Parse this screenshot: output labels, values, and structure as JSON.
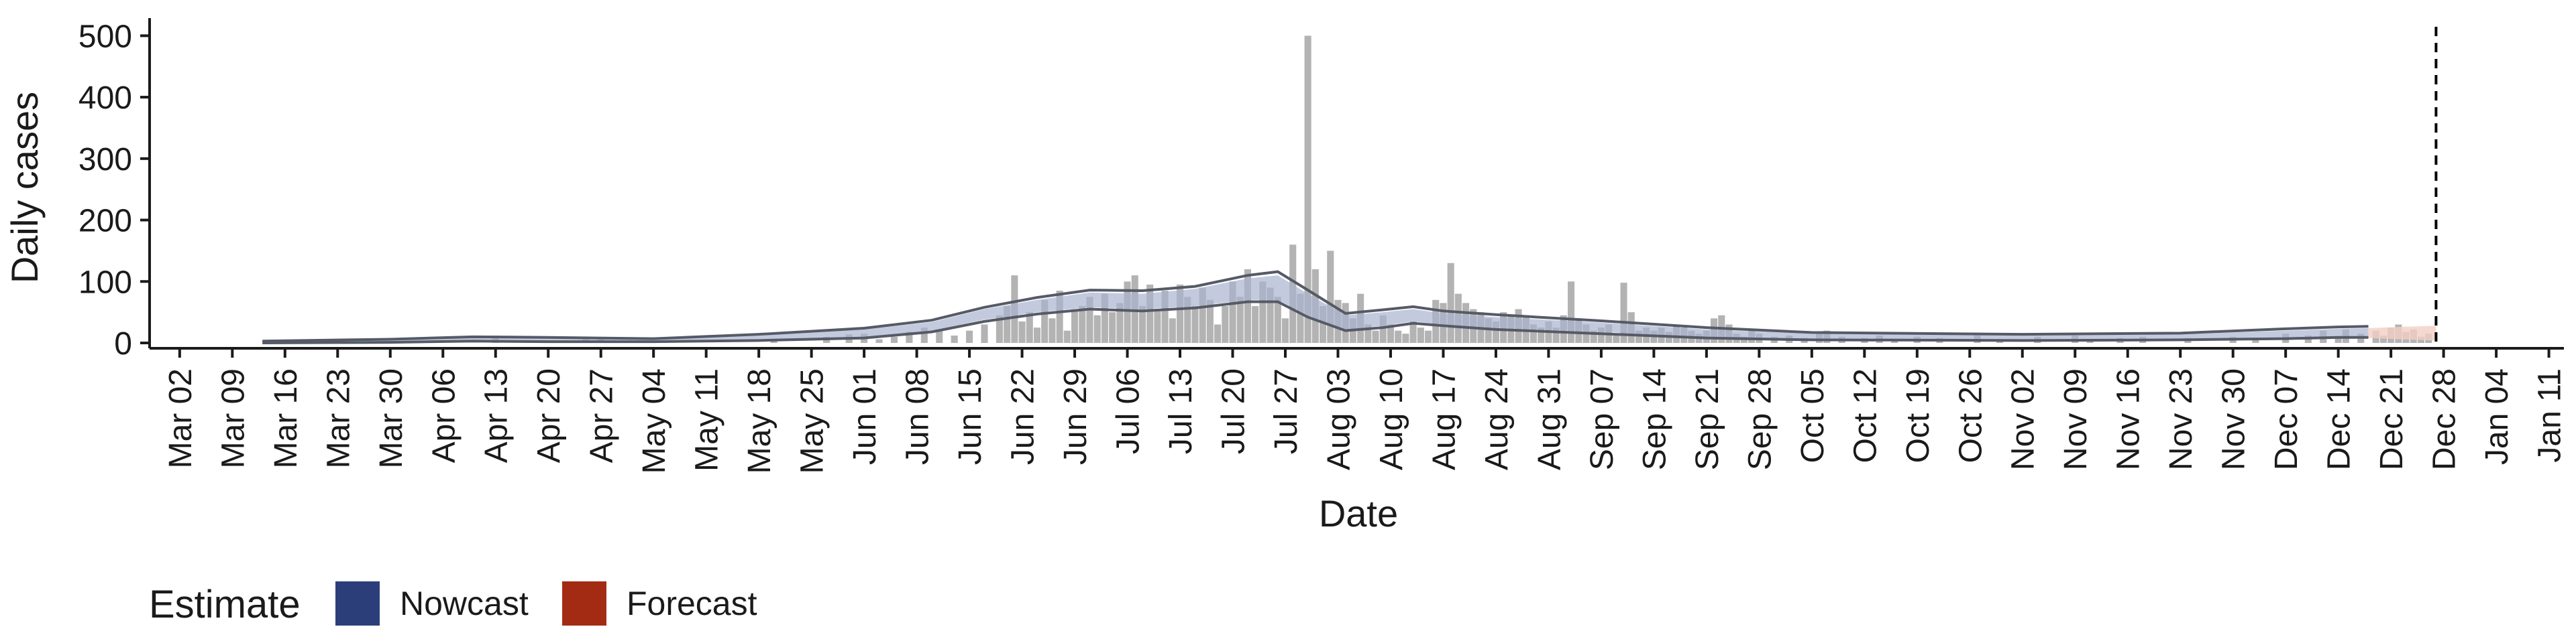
{
  "chart_data": {
    "type": "bar",
    "title": "",
    "xlabel": "Date",
    "ylabel": "Daily cases",
    "ylim": [
      0,
      520
    ],
    "yticks": [
      0,
      100,
      200,
      300,
      400,
      500
    ],
    "x_range": [
      "2020-02-27",
      "2021-01-13"
    ],
    "x_ticks": [
      "2020-03-02",
      "2020-03-09",
      "2020-03-16",
      "2020-03-23",
      "2020-03-30",
      "2020-04-06",
      "2020-04-13",
      "2020-04-20",
      "2020-04-27",
      "2020-05-04",
      "2020-05-11",
      "2020-05-18",
      "2020-05-25",
      "2020-06-01",
      "2020-06-08",
      "2020-06-15",
      "2020-06-22",
      "2020-06-29",
      "2020-07-06",
      "2020-07-13",
      "2020-07-20",
      "2020-07-27",
      "2020-08-03",
      "2020-08-10",
      "2020-08-17",
      "2020-08-24",
      "2020-08-31",
      "2020-09-07",
      "2020-09-14",
      "2020-09-21",
      "2020-09-28",
      "2020-10-05",
      "2020-10-12",
      "2020-10-19",
      "2020-10-26",
      "2020-11-02",
      "2020-11-09",
      "2020-11-16",
      "2020-11-23",
      "2020-11-30",
      "2020-12-07",
      "2020-12-14",
      "2020-12-21",
      "2020-12-28",
      "2021-01-04",
      "2021-01-11"
    ],
    "x_tick_labels": [
      "Mar 02",
      "Mar 09",
      "Mar 16",
      "Mar 23",
      "Mar 30",
      "Apr 06",
      "Apr 13",
      "Apr 20",
      "Apr 27",
      "May 04",
      "May 11",
      "May 18",
      "May 25",
      "Jun 01",
      "Jun 08",
      "Jun 15",
      "Jun 22",
      "Jun 29",
      "Jul 06",
      "Jul 13",
      "Jul 20",
      "Jul 27",
      "Aug 03",
      "Aug 10",
      "Aug 17",
      "Aug 24",
      "Aug 31",
      "Sep 07",
      "Sep 14",
      "Sep 21",
      "Sep 28",
      "Oct 05",
      "Oct 12",
      "Oct 19",
      "Oct 26",
      "Nov 02",
      "Nov 09",
      "Nov 16",
      "Nov 23",
      "Nov 30",
      "Dec 07",
      "Dec 14",
      "Dec 21",
      "Dec 28",
      "Jan 04",
      "Jan 11"
    ],
    "vline_date": "2020-12-27",
    "legend": {
      "title": "Estimate",
      "placement": "bottom-left",
      "items": [
        {
          "label": "Nowcast",
          "color": "#2c3e7a"
        },
        {
          "label": "Forecast",
          "color": "#a32b14"
        }
      ]
    },
    "bar_color": "#b3b3b3",
    "band_color": "#aab3d0",
    "line_color": "#555a66",
    "forecast_band_color": "#f2cfc6",
    "bars": [
      {
        "date": "2020-04-13",
        "value": 12
      },
      {
        "date": "2020-04-25",
        "value": 10
      },
      {
        "date": "2020-04-27",
        "value": 8
      },
      {
        "date": "2020-05-20",
        "value": 6
      },
      {
        "date": "2020-05-27",
        "value": 10
      },
      {
        "date": "2020-05-30",
        "value": 14
      },
      {
        "date": "2020-06-01",
        "value": 15
      },
      {
        "date": "2020-06-03",
        "value": 6
      },
      {
        "date": "2020-06-05",
        "value": 10
      },
      {
        "date": "2020-06-07",
        "value": 18
      },
      {
        "date": "2020-06-09",
        "value": 25
      },
      {
        "date": "2020-06-11",
        "value": 22
      },
      {
        "date": "2020-06-13",
        "value": 12
      },
      {
        "date": "2020-06-15",
        "value": 20
      },
      {
        "date": "2020-06-17",
        "value": 30
      },
      {
        "date": "2020-06-19",
        "value": 45
      },
      {
        "date": "2020-06-20",
        "value": 60
      },
      {
        "date": "2020-06-21",
        "value": 110
      },
      {
        "date": "2020-06-22",
        "value": 35
      },
      {
        "date": "2020-06-23",
        "value": 50
      },
      {
        "date": "2020-06-24",
        "value": 25
      },
      {
        "date": "2020-06-25",
        "value": 70
      },
      {
        "date": "2020-06-26",
        "value": 40
      },
      {
        "date": "2020-06-27",
        "value": 85
      },
      {
        "date": "2020-06-28",
        "value": 20
      },
      {
        "date": "2020-06-29",
        "value": 55
      },
      {
        "date": "2020-06-30",
        "value": 60
      },
      {
        "date": "2020-07-01",
        "value": 75
      },
      {
        "date": "2020-07-02",
        "value": 45
      },
      {
        "date": "2020-07-03",
        "value": 80
      },
      {
        "date": "2020-07-04",
        "value": 50
      },
      {
        "date": "2020-07-05",
        "value": 65
      },
      {
        "date": "2020-07-06",
        "value": 100
      },
      {
        "date": "2020-07-07",
        "value": 110
      },
      {
        "date": "2020-07-08",
        "value": 60
      },
      {
        "date": "2020-07-09",
        "value": 95
      },
      {
        "date": "2020-07-10",
        "value": 55
      },
      {
        "date": "2020-07-11",
        "value": 85
      },
      {
        "date": "2020-07-12",
        "value": 40
      },
      {
        "date": "2020-07-13",
        "value": 95
      },
      {
        "date": "2020-07-14",
        "value": 75
      },
      {
        "date": "2020-07-15",
        "value": 60
      },
      {
        "date": "2020-07-16",
        "value": 90
      },
      {
        "date": "2020-07-17",
        "value": 70
      },
      {
        "date": "2020-07-18",
        "value": 30
      },
      {
        "date": "2020-07-19",
        "value": 60
      },
      {
        "date": "2020-07-20",
        "value": 100
      },
      {
        "date": "2020-07-21",
        "value": 75
      },
      {
        "date": "2020-07-22",
        "value": 120
      },
      {
        "date": "2020-07-23",
        "value": 60
      },
      {
        "date": "2020-07-24",
        "value": 100
      },
      {
        "date": "2020-07-25",
        "value": 90
      },
      {
        "date": "2020-07-26",
        "value": 75
      },
      {
        "date": "2020-07-27",
        "value": 40
      },
      {
        "date": "2020-07-28",
        "value": 160
      },
      {
        "date": "2020-07-29",
        "value": 80
      },
      {
        "date": "2020-07-30",
        "value": 500
      },
      {
        "date": "2020-07-31",
        "value": 120
      },
      {
        "date": "2020-08-01",
        "value": 60
      },
      {
        "date": "2020-08-02",
        "value": 150
      },
      {
        "date": "2020-08-03",
        "value": 70
      },
      {
        "date": "2020-08-04",
        "value": 65
      },
      {
        "date": "2020-08-05",
        "value": 40
      },
      {
        "date": "2020-08-06",
        "value": 80
      },
      {
        "date": "2020-08-07",
        "value": 30
      },
      {
        "date": "2020-08-08",
        "value": 20
      },
      {
        "date": "2020-08-09",
        "value": 45
      },
      {
        "date": "2020-08-10",
        "value": 30
      },
      {
        "date": "2020-08-11",
        "value": 20
      },
      {
        "date": "2020-08-12",
        "value": 15
      },
      {
        "date": "2020-08-13",
        "value": 35
      },
      {
        "date": "2020-08-14",
        "value": 25
      },
      {
        "date": "2020-08-15",
        "value": 20
      },
      {
        "date": "2020-08-16",
        "value": 70
      },
      {
        "date": "2020-08-17",
        "value": 65
      },
      {
        "date": "2020-08-18",
        "value": 130
      },
      {
        "date": "2020-08-19",
        "value": 80
      },
      {
        "date": "2020-08-20",
        "value": 65
      },
      {
        "date": "2020-08-21",
        "value": 55
      },
      {
        "date": "2020-08-22",
        "value": 50
      },
      {
        "date": "2020-08-23",
        "value": 40
      },
      {
        "date": "2020-08-24",
        "value": 35
      },
      {
        "date": "2020-08-25",
        "value": 50
      },
      {
        "date": "2020-08-26",
        "value": 45
      },
      {
        "date": "2020-08-27",
        "value": 55
      },
      {
        "date": "2020-08-28",
        "value": 45
      },
      {
        "date": "2020-08-29",
        "value": 30
      },
      {
        "date": "2020-08-30",
        "value": 25
      },
      {
        "date": "2020-08-31",
        "value": 35
      },
      {
        "date": "2020-09-01",
        "value": 25
      },
      {
        "date": "2020-09-02",
        "value": 45
      },
      {
        "date": "2020-09-03",
        "value": 100
      },
      {
        "date": "2020-09-04",
        "value": 40
      },
      {
        "date": "2020-09-05",
        "value": 30
      },
      {
        "date": "2020-09-06",
        "value": 20
      },
      {
        "date": "2020-09-07",
        "value": 25
      },
      {
        "date": "2020-09-08",
        "value": 30
      },
      {
        "date": "2020-09-09",
        "value": 15
      },
      {
        "date": "2020-09-10",
        "value": 98
      },
      {
        "date": "2020-09-11",
        "value": 50
      },
      {
        "date": "2020-09-12",
        "value": 20
      },
      {
        "date": "2020-09-13",
        "value": 25
      },
      {
        "date": "2020-09-14",
        "value": 20
      },
      {
        "date": "2020-09-15",
        "value": 25
      },
      {
        "date": "2020-09-16",
        "value": 18
      },
      {
        "date": "2020-09-17",
        "value": 30
      },
      {
        "date": "2020-09-18",
        "value": 25
      },
      {
        "date": "2020-09-19",
        "value": 20
      },
      {
        "date": "2020-09-20",
        "value": 15
      },
      {
        "date": "2020-09-21",
        "value": 20
      },
      {
        "date": "2020-09-22",
        "value": 40
      },
      {
        "date": "2020-09-23",
        "value": 45
      },
      {
        "date": "2020-09-24",
        "value": 30
      },
      {
        "date": "2020-09-25",
        "value": 15
      },
      {
        "date": "2020-09-26",
        "value": 10
      },
      {
        "date": "2020-09-27",
        "value": 20
      },
      {
        "date": "2020-09-28",
        "value": 15
      },
      {
        "date": "2020-09-30",
        "value": 10
      },
      {
        "date": "2020-10-02",
        "value": 12
      },
      {
        "date": "2020-10-04",
        "value": 8
      },
      {
        "date": "2020-10-06",
        "value": 15
      },
      {
        "date": "2020-10-07",
        "value": 20
      },
      {
        "date": "2020-10-09",
        "value": 10
      },
      {
        "date": "2020-10-12",
        "value": 8
      },
      {
        "date": "2020-10-14",
        "value": 12
      },
      {
        "date": "2020-10-16",
        "value": 6
      },
      {
        "date": "2020-10-19",
        "value": 10
      },
      {
        "date": "2020-10-22",
        "value": 8
      },
      {
        "date": "2020-10-27",
        "value": 12
      },
      {
        "date": "2020-10-30",
        "value": 6
      },
      {
        "date": "2020-11-04",
        "value": 10
      },
      {
        "date": "2020-11-09",
        "value": 12
      },
      {
        "date": "2020-11-11",
        "value": 6
      },
      {
        "date": "2020-11-15",
        "value": 8
      },
      {
        "date": "2020-11-18",
        "value": 10
      },
      {
        "date": "2020-11-24",
        "value": 8
      },
      {
        "date": "2020-11-30",
        "value": 10
      },
      {
        "date": "2020-12-03",
        "value": 8
      },
      {
        "date": "2020-12-07",
        "value": 15
      },
      {
        "date": "2020-12-10",
        "value": 12
      },
      {
        "date": "2020-12-12",
        "value": 20
      },
      {
        "date": "2020-12-14",
        "value": 10
      },
      {
        "date": "2020-12-15",
        "value": 22
      },
      {
        "date": "2020-12-17",
        "value": 15
      },
      {
        "date": "2020-12-19",
        "value": 20
      },
      {
        "date": "2020-12-20",
        "value": 12
      },
      {
        "date": "2020-12-21",
        "value": 25
      },
      {
        "date": "2020-12-22",
        "value": 30
      },
      {
        "date": "2020-12-23",
        "value": 18
      },
      {
        "date": "2020-12-24",
        "value": 22
      },
      {
        "date": "2020-12-25",
        "value": 10
      },
      {
        "date": "2020-12-26",
        "value": 15
      }
    ],
    "band": [
      {
        "date": "2020-03-13",
        "lower": 0,
        "upper": 3
      },
      {
        "date": "2020-03-30",
        "lower": 1,
        "upper": 5
      },
      {
        "date": "2020-04-10",
        "lower": 3,
        "upper": 9
      },
      {
        "date": "2020-04-20",
        "lower": 3,
        "upper": 8
      },
      {
        "date": "2020-05-04",
        "lower": 2,
        "upper": 6
      },
      {
        "date": "2020-05-18",
        "lower": 5,
        "upper": 12
      },
      {
        "date": "2020-06-01",
        "lower": 10,
        "upper": 22
      },
      {
        "date": "2020-06-10",
        "lower": 20,
        "upper": 34
      },
      {
        "date": "2020-06-17",
        "lower": 38,
        "upper": 55
      },
      {
        "date": "2020-06-24",
        "lower": 50,
        "upper": 70
      },
      {
        "date": "2020-07-01",
        "lower": 58,
        "upper": 82
      },
      {
        "date": "2020-07-08",
        "lower": 55,
        "upper": 80
      },
      {
        "date": "2020-07-15",
        "lower": 60,
        "upper": 88
      },
      {
        "date": "2020-07-22",
        "lower": 70,
        "upper": 105
      },
      {
        "date": "2020-07-26",
        "lower": 70,
        "upper": 110
      },
      {
        "date": "2020-07-30",
        "lower": 45,
        "upper": 80
      },
      {
        "date": "2020-08-04",
        "lower": 22,
        "upper": 45
      },
      {
        "date": "2020-08-09",
        "lower": 28,
        "upper": 50
      },
      {
        "date": "2020-08-13",
        "lower": 35,
        "upper": 55
      },
      {
        "date": "2020-08-17",
        "lower": 30,
        "upper": 48
      },
      {
        "date": "2020-08-24",
        "lower": 25,
        "upper": 42
      },
      {
        "date": "2020-09-07",
        "lower": 18,
        "upper": 33
      },
      {
        "date": "2020-09-21",
        "lower": 10,
        "upper": 22
      },
      {
        "date": "2020-10-05",
        "lower": 6,
        "upper": 15
      },
      {
        "date": "2020-11-02",
        "lower": 5,
        "upper": 12
      },
      {
        "date": "2020-11-23",
        "lower": 6,
        "upper": 14
      },
      {
        "date": "2020-12-07",
        "lower": 8,
        "upper": 20
      },
      {
        "date": "2020-12-14",
        "lower": 10,
        "upper": 23
      },
      {
        "date": "2020-12-18",
        "lower": 10,
        "upper": 24
      }
    ],
    "band_outer_lines": [
      {
        "date": "2020-03-13",
        "lower": 0,
        "upper": 3
      },
      {
        "date": "2020-03-30",
        "lower": 1,
        "upper": 6
      },
      {
        "date": "2020-04-10",
        "lower": 3,
        "upper": 10
      },
      {
        "date": "2020-04-20",
        "lower": 2,
        "upper": 9
      },
      {
        "date": "2020-05-04",
        "lower": 2,
        "upper": 7
      },
      {
        "date": "2020-05-18",
        "lower": 4,
        "upper": 14
      },
      {
        "date": "2020-06-01",
        "lower": 8,
        "upper": 24
      },
      {
        "date": "2020-06-10",
        "lower": 18,
        "upper": 37
      },
      {
        "date": "2020-06-17",
        "lower": 35,
        "upper": 58
      },
      {
        "date": "2020-06-24",
        "lower": 47,
        "upper": 74
      },
      {
        "date": "2020-07-01",
        "lower": 55,
        "upper": 86
      },
      {
        "date": "2020-07-08",
        "lower": 52,
        "upper": 85
      },
      {
        "date": "2020-07-15",
        "lower": 57,
        "upper": 92
      },
      {
        "date": "2020-07-22",
        "lower": 67,
        "upper": 110
      },
      {
        "date": "2020-07-26",
        "lower": 67,
        "upper": 116
      },
      {
        "date": "2020-07-30",
        "lower": 42,
        "upper": 86
      },
      {
        "date": "2020-08-04",
        "lower": 20,
        "upper": 48
      },
      {
        "date": "2020-08-09",
        "lower": 25,
        "upper": 54
      },
      {
        "date": "2020-08-13",
        "lower": 32,
        "upper": 59
      },
      {
        "date": "2020-08-17",
        "lower": 28,
        "upper": 52
      },
      {
        "date": "2020-08-24",
        "lower": 22,
        "upper": 46
      },
      {
        "date": "2020-09-07",
        "lower": 15,
        "upper": 36
      },
      {
        "date": "2020-09-21",
        "lower": 8,
        "upper": 25
      },
      {
        "date": "2020-10-05",
        "lower": 5,
        "upper": 17
      },
      {
        "date": "2020-11-02",
        "lower": 4,
        "upper": 14
      },
      {
        "date": "2020-11-23",
        "lower": 5,
        "upper": 16
      },
      {
        "date": "2020-12-07",
        "lower": 7,
        "upper": 23
      },
      {
        "date": "2020-12-14",
        "lower": 9,
        "upper": 26
      },
      {
        "date": "2020-12-18",
        "lower": 9,
        "upper": 27
      }
    ],
    "forecast_band": [
      {
        "date": "2020-12-18",
        "lower": 8,
        "upper": 24
      },
      {
        "date": "2020-12-22",
        "lower": 6,
        "upper": 26
      },
      {
        "date": "2020-12-27",
        "lower": 4,
        "upper": 28
      }
    ]
  }
}
